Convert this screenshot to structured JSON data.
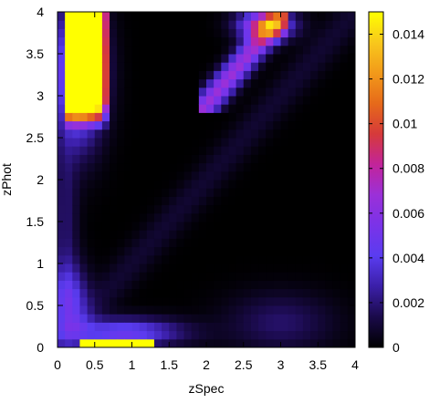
{
  "chart_data": {
    "type": "heatmap",
    "xlabel": "zSpec",
    "ylabel": "zPhot",
    "xlim": [
      0,
      4
    ],
    "ylim": [
      0,
      4
    ],
    "x_ticks": [
      {
        "value": 0,
        "label": "0"
      },
      {
        "value": 0.5,
        "label": "0.5"
      },
      {
        "value": 1,
        "label": "1"
      },
      {
        "value": 1.5,
        "label": "1.5"
      },
      {
        "value": 2,
        "label": "2"
      },
      {
        "value": 2.5,
        "label": "2.5"
      },
      {
        "value": 3,
        "label": "3"
      },
      {
        "value": 3.5,
        "label": "3.5"
      },
      {
        "value": 4,
        "label": "4"
      }
    ],
    "y_ticks": [
      {
        "value": 0,
        "label": "0"
      },
      {
        "value": 0.5,
        "label": "0.5"
      },
      {
        "value": 1,
        "label": "1"
      },
      {
        "value": 1.5,
        "label": "1.5"
      },
      {
        "value": 2,
        "label": "2"
      },
      {
        "value": 2.5,
        "label": "2.5"
      },
      {
        "value": 3,
        "label": "3"
      },
      {
        "value": 3.5,
        "label": "3.5"
      },
      {
        "value": 4,
        "label": "4"
      }
    ],
    "colorbar": {
      "min": 0,
      "max": 0.015,
      "ticks": [
        {
          "value": 0,
          "label": "0"
        },
        {
          "value": 0.002,
          "label": "0.002"
        },
        {
          "value": 0.004,
          "label": "0.004"
        },
        {
          "value": 0.006,
          "label": "0.006"
        },
        {
          "value": 0.008,
          "label": "0.008"
        },
        {
          "value": 0.01,
          "label": "0.01"
        },
        {
          "value": 0.012,
          "label": "0.012"
        },
        {
          "value": 0.014,
          "label": "0.014"
        }
      ],
      "colors": [
        "#000000",
        "#1a0a4a",
        "#3b1fa8",
        "#5a3cf0",
        "#7a33e8",
        "#9b30d8",
        "#c2249a",
        "#d63a3a",
        "#e66a1a",
        "#f29a1a",
        "#f8c81c",
        "#ffff00"
      ]
    },
    "bins": 40,
    "description_of_regions": [
      {
        "xrange": [
          0.1,
          0.7
        ],
        "yrange": [
          2.5,
          4.0
        ],
        "level": "high"
      },
      {
        "xrange": [
          0.3,
          1.3
        ],
        "yrange": [
          0.0,
          0.1
        ],
        "level": "high"
      },
      {
        "xrange": [
          2.0,
          3.0
        ],
        "yrange": [
          3.0,
          4.0
        ],
        "level": "medium"
      },
      {
        "xrange": [
          0.0,
          0.5
        ],
        "yrange": [
          0.2,
          0.8
        ],
        "level": "low"
      }
    ]
  }
}
